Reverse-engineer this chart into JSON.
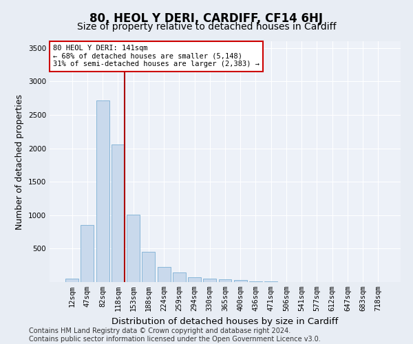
{
  "title": "80, HEOL Y DERI, CARDIFF, CF14 6HJ",
  "subtitle": "Size of property relative to detached houses in Cardiff",
  "xlabel": "Distribution of detached houses by size in Cardiff",
  "ylabel": "Number of detached properties",
  "bar_labels": [
    "12sqm",
    "47sqm",
    "82sqm",
    "118sqm",
    "153sqm",
    "188sqm",
    "224sqm",
    "259sqm",
    "294sqm",
    "330sqm",
    "365sqm",
    "400sqm",
    "436sqm",
    "471sqm",
    "506sqm",
    "541sqm",
    "577sqm",
    "612sqm",
    "647sqm",
    "683sqm",
    "718sqm"
  ],
  "bar_values": [
    55,
    850,
    2720,
    2060,
    1010,
    455,
    230,
    145,
    70,
    50,
    40,
    30,
    15,
    10,
    5,
    3,
    2,
    2,
    1,
    1,
    1
  ],
  "bar_color": "#c9d9ec",
  "bar_edge_color": "#7bafd4",
  "vline_x_index": 3,
  "vline_color": "#aa0000",
  "annotation_text": "80 HEOL Y DERI: 141sqm\n← 68% of detached houses are smaller (5,148)\n31% of semi-detached houses are larger (2,383) →",
  "annotation_box_color": "#ffffff",
  "annotation_box_edge": "#cc0000",
  "ylim": [
    0,
    3600
  ],
  "yticks": [
    0,
    500,
    1000,
    1500,
    2000,
    2500,
    3000,
    3500
  ],
  "bg_color": "#e8edf4",
  "plot_bg_color": "#edf1f8",
  "footer": "Contains HM Land Registry data © Crown copyright and database right 2024.\nContains public sector information licensed under the Open Government Licence v3.0.",
  "title_fontsize": 12,
  "subtitle_fontsize": 10,
  "axis_label_fontsize": 9,
  "tick_fontsize": 7.5,
  "footer_fontsize": 7
}
